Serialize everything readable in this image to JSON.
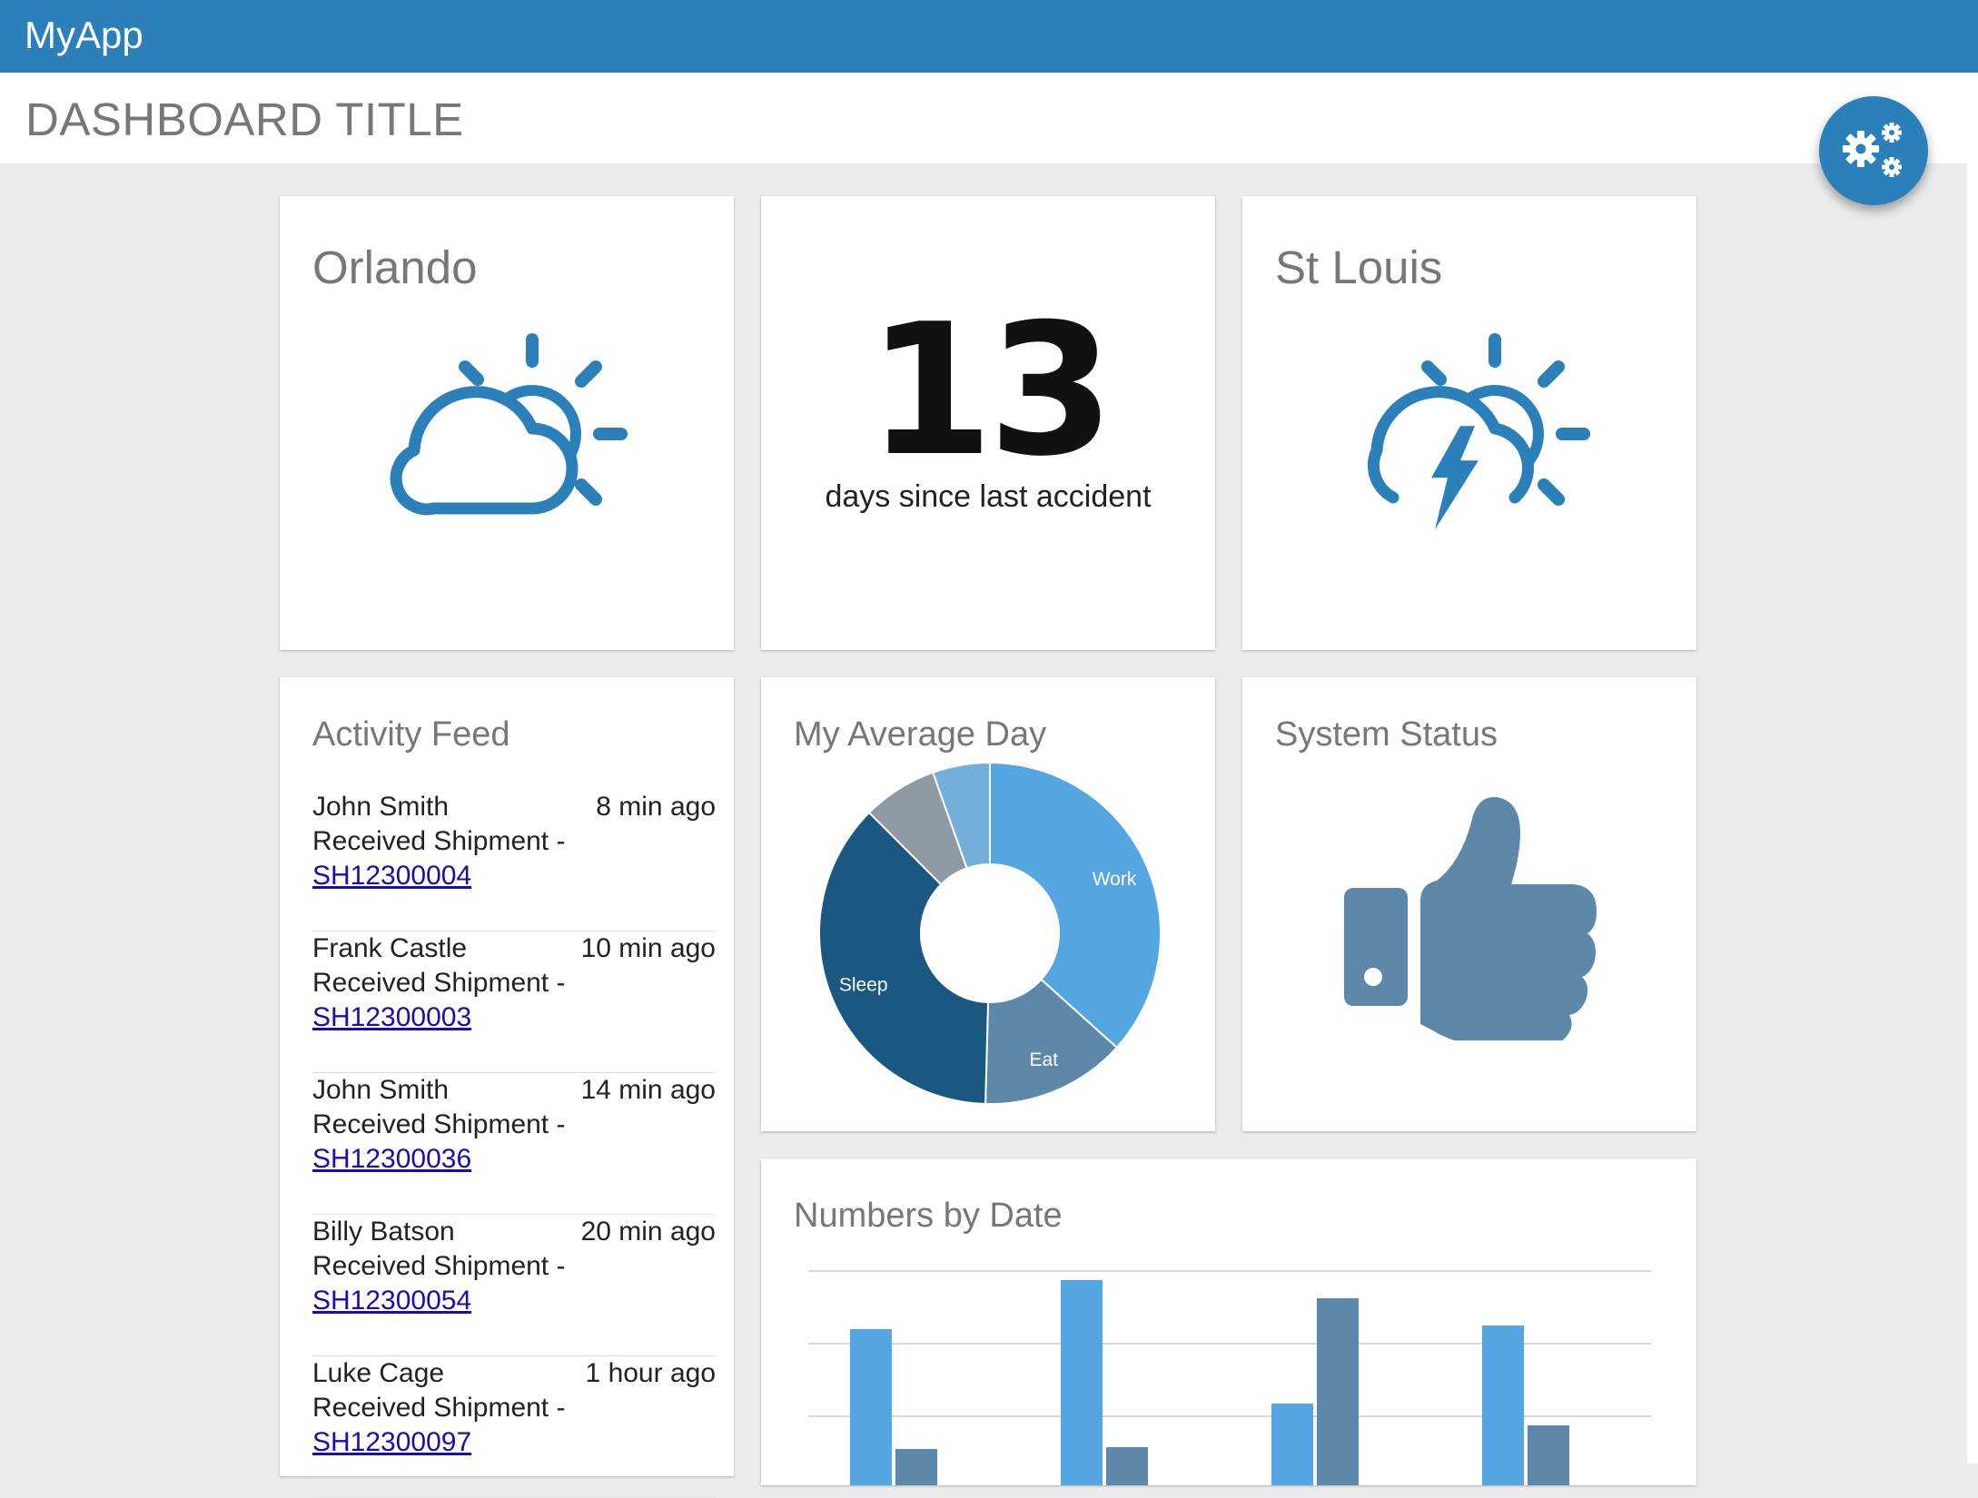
{
  "app": {
    "name": "MyApp"
  },
  "header": {
    "title": "DASHBOARD TITLE",
    "settings_icon": "gears-icon"
  },
  "colors": {
    "primary": "#2b80b9",
    "accent_light": "#53a6e0",
    "accent_slate": "#5e88aa",
    "accent_dark": "#1a5882",
    "background": "#ececec"
  },
  "weather": [
    {
      "city": "Orlando",
      "icon": "partly-cloudy-icon"
    },
    {
      "city": "St Louis",
      "icon": "thunderstorm-icon"
    }
  ],
  "accident_counter": {
    "value": "13",
    "caption": "days since last accident"
  },
  "activity_feed": {
    "title": "Activity Feed",
    "items": [
      {
        "user": "John Smith",
        "time": "8 min ago",
        "action": "Received Shipment -",
        "link": "SH12300004"
      },
      {
        "user": "Frank Castle",
        "time": "10 min ago",
        "action": "Received Shipment -",
        "link": "SH12300003"
      },
      {
        "user": "John Smith",
        "time": "14 min ago",
        "action": "Received Shipment -",
        "link": "SH12300036"
      },
      {
        "user": "Billy Batson",
        "time": "20 min ago",
        "action": "Received Shipment -",
        "link": "SH12300054"
      },
      {
        "user": "Luke Cage",
        "time": "1 hour ago",
        "action": "Received Shipment -",
        "link": "SH12300097"
      }
    ]
  },
  "system_status": {
    "title": "System Status",
    "icon": "thumbs-up-icon"
  },
  "chart_data": [
    {
      "type": "pie",
      "title": "My Average Day",
      "donut": true,
      "slices": [
        {
          "label": "Work",
          "value": 8.8,
          "color": "#53a6e0"
        },
        {
          "label": "Eat",
          "value": 3.3,
          "color": "#5e88aa"
        },
        {
          "label": "Sleep",
          "value": 8.9,
          "color": "#1a5882"
        },
        {
          "label": "",
          "value": 1.7,
          "color": "#8f9ba4"
        },
        {
          "label": "",
          "value": 1.3,
          "color": "#74afd9"
        }
      ]
    },
    {
      "type": "bar",
      "title": "Numbers by Date",
      "grid": true,
      "categories": [
        "",
        "",
        "",
        ""
      ],
      "ylim": [
        0,
        100
      ],
      "series": [
        {
          "values": [
            73,
            100,
            32,
            75
          ],
          "color": "#53a6e0"
        },
        {
          "values": [
            7,
            8,
            90,
            20
          ],
          "color": "#5e88aa"
        }
      ]
    }
  ]
}
